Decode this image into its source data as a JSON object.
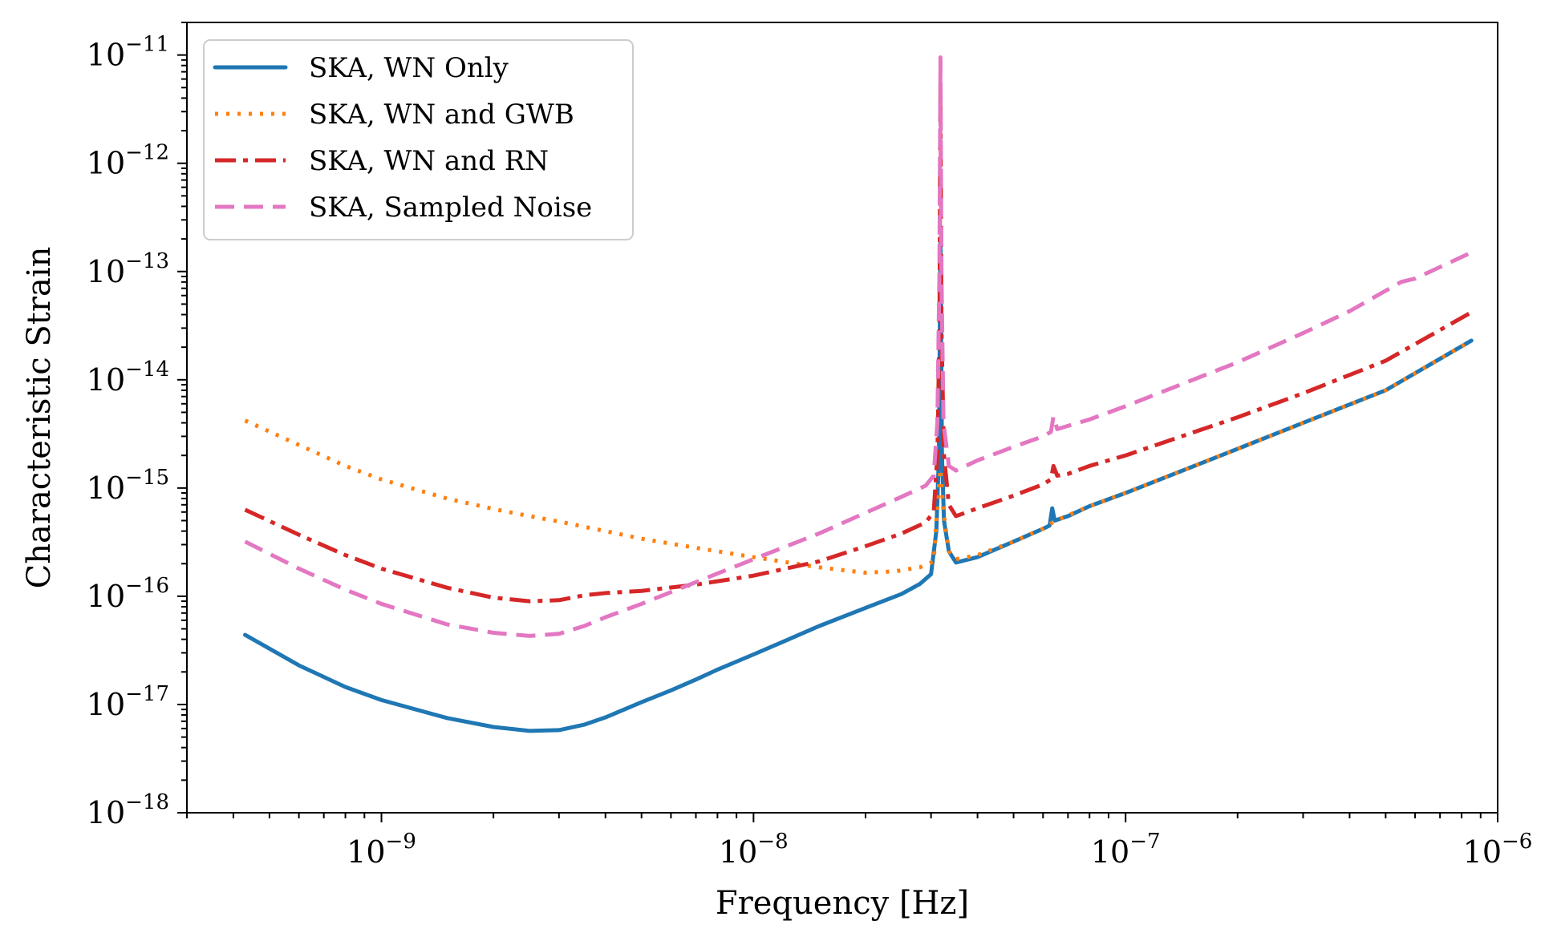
{
  "chart_data": {
    "type": "line",
    "title": "",
    "xlabel": "Frequency [Hz]",
    "ylabel": "Characteristic Strain",
    "xscale": "log",
    "yscale": "log",
    "xlim": [
      3e-10,
      1e-06
    ],
    "ylim": [
      1e-18,
      2e-11
    ],
    "grid": false,
    "legend_position": "top-left",
    "x_ticks": [
      {
        "value": 1e-09,
        "base": "10",
        "exp": "−9"
      },
      {
        "value": 1e-08,
        "base": "10",
        "exp": "−8"
      },
      {
        "value": 1e-07,
        "base": "10",
        "exp": "−7"
      },
      {
        "value": 1e-06,
        "base": "10",
        "exp": "−6"
      }
    ],
    "y_ticks": [
      {
        "value": 1e-18,
        "base": "10",
        "exp": "−18"
      },
      {
        "value": 1e-17,
        "base": "10",
        "exp": "−17"
      },
      {
        "value": 1e-16,
        "base": "10",
        "exp": "−16"
      },
      {
        "value": 1e-15,
        "base": "10",
        "exp": "−15"
      },
      {
        "value": 1e-14,
        "base": "10",
        "exp": "−14"
      },
      {
        "value": 1e-13,
        "base": "10",
        "exp": "−13"
      },
      {
        "value": 1e-12,
        "base": "10",
        "exp": "−12"
      },
      {
        "value": 1e-11,
        "base": "10",
        "exp": "−11"
      }
    ],
    "series": [
      {
        "name": "SKA, WN Only",
        "color": "#1f77b4",
        "style": "solid",
        "points": [
          [
            4.3e-10,
            4.4e-17
          ],
          [
            6e-10,
            2.3e-17
          ],
          [
            8e-10,
            1.45e-17
          ],
          [
            1e-09,
            1.1e-17
          ],
          [
            1.5e-09,
            7.5e-18
          ],
          [
            2e-09,
            6.2e-18
          ],
          [
            2.5e-09,
            5.7e-18
          ],
          [
            3e-09,
            5.8e-18
          ],
          [
            3.5e-09,
            6.5e-18
          ],
          [
            4e-09,
            7.6e-18
          ],
          [
            5e-09,
            1.05e-17
          ],
          [
            6e-09,
            1.35e-17
          ],
          [
            7e-09,
            1.7e-17
          ],
          [
            8e-09,
            2.1e-17
          ],
          [
            1e-08,
            2.9e-17
          ],
          [
            1.2e-08,
            3.8e-17
          ],
          [
            1.5e-08,
            5.3e-17
          ],
          [
            2e-08,
            7.8e-17
          ],
          [
            2.5e-08,
            1.05e-16
          ],
          [
            2.8e-08,
            1.3e-16
          ],
          [
            3e-08,
            1.6e-16
          ],
          [
            3.1e-08,
            4e-16
          ],
          [
            3.15e-08,
            2e-15
          ],
          [
            3.18e-08,
            2e-13
          ],
          [
            3.21e-08,
            2e-15
          ],
          [
            3.25e-08,
            5e-16
          ],
          [
            3.35e-08,
            2.6e-16
          ],
          [
            3.5e-08,
            2.05e-16
          ],
          [
            4e-08,
            2.3e-16
          ],
          [
            5e-08,
            3.2e-16
          ],
          [
            6e-08,
            4.2e-16
          ],
          [
            6.25e-08,
            4.5e-16
          ],
          [
            6.35e-08,
            6.5e-16
          ],
          [
            6.45e-08,
            5e-16
          ],
          [
            7e-08,
            5.5e-16
          ],
          [
            8e-08,
            6.8e-16
          ],
          [
            1e-07,
            9e-16
          ],
          [
            2e-07,
            2.3e-15
          ],
          [
            3e-07,
            4e-15
          ],
          [
            5e-07,
            8e-15
          ],
          [
            8.5e-07,
            2.3e-14
          ]
        ]
      },
      {
        "name": "SKA, WN and GWB",
        "color": "#ff7f0e",
        "style": "dotted",
        "points": [
          [
            4.3e-10,
            4.2e-15
          ],
          [
            6e-10,
            2.5e-15
          ],
          [
            8e-10,
            1.6e-15
          ],
          [
            1e-09,
            1.2e-15
          ],
          [
            1.5e-09,
            8e-16
          ],
          [
            2e-09,
            6.4e-16
          ],
          [
            2.5e-09,
            5.5e-16
          ],
          [
            3e-09,
            4.9e-16
          ],
          [
            4e-09,
            4e-16
          ],
          [
            5e-09,
            3.4e-16
          ],
          [
            7e-09,
            2.8e-16
          ],
          [
            1e-08,
            2.3e-16
          ],
          [
            1.3e-08,
            2e-16
          ],
          [
            1.5e-08,
            1.85e-16
          ],
          [
            2e-08,
            1.65e-16
          ],
          [
            2.4e-08,
            1.7e-16
          ],
          [
            2.8e-08,
            1.85e-16
          ],
          [
            3.05e-08,
            2.1e-16
          ],
          [
            3.12e-08,
            7e-16
          ],
          [
            3.18e-08,
            1.5e-15
          ],
          [
            3.24e-08,
            6e-16
          ],
          [
            3.35e-08,
            2.6e-16
          ],
          [
            3.5e-08,
            2.2e-16
          ],
          [
            4e-08,
            2.4e-16
          ],
          [
            5e-08,
            3.2e-16
          ],
          [
            6e-08,
            4.2e-16
          ],
          [
            6.3e-08,
            4.7e-16
          ],
          [
            6.5e-08,
            5e-16
          ],
          [
            8e-08,
            6.8e-16
          ],
          [
            1e-07,
            9e-16
          ],
          [
            2e-07,
            2.3e-15
          ],
          [
            3e-07,
            4e-15
          ],
          [
            5e-07,
            8e-15
          ],
          [
            8.5e-07,
            2.3e-14
          ]
        ]
      },
      {
        "name": "SKA, WN and RN",
        "color": "#d62728",
        "style": "dashdot",
        "points": [
          [
            4.3e-10,
            6.3e-16
          ],
          [
            6e-10,
            3.7e-16
          ],
          [
            8e-10,
            2.4e-16
          ],
          [
            1e-09,
            1.8e-16
          ],
          [
            1.5e-09,
            1.2e-16
          ],
          [
            2e-09,
            9.7e-17
          ],
          [
            2.5e-09,
            9e-17
          ],
          [
            3e-09,
            9.2e-17
          ],
          [
            3.5e-09,
            1.02e-16
          ],
          [
            4e-09,
            1.07e-16
          ],
          [
            5e-09,
            1.12e-16
          ],
          [
            7e-09,
            1.28e-16
          ],
          [
            1e-08,
            1.55e-16
          ],
          [
            1.5e-08,
            2.1e-16
          ],
          [
            2e-08,
            2.9e-16
          ],
          [
            2.5e-08,
            3.8e-16
          ],
          [
            2.9e-08,
            4.8e-16
          ],
          [
            3.05e-08,
            6e-16
          ],
          [
            3.12e-08,
            2e-15
          ],
          [
            3.16e-08,
            3e-14
          ],
          [
            3.18e-08,
            5e-12
          ],
          [
            3.2e-08,
            3e-14
          ],
          [
            3.25e-08,
            2e-15
          ],
          [
            3.35e-08,
            7e-16
          ],
          [
            3.5e-08,
            5.5e-16
          ],
          [
            4e-08,
            6.5e-16
          ],
          [
            5e-08,
            8.5e-16
          ],
          [
            6e-08,
            1.08e-15
          ],
          [
            6.3e-08,
            1.2e-15
          ],
          [
            6.4e-08,
            1.6e-15
          ],
          [
            6.55e-08,
            1.3e-15
          ],
          [
            7e-08,
            1.35e-15
          ],
          [
            8e-08,
            1.6e-15
          ],
          [
            1e-07,
            2e-15
          ],
          [
            2e-07,
            4.5e-15
          ],
          [
            3e-07,
            7.5e-15
          ],
          [
            5e-07,
            1.5e-14
          ],
          [
            8.5e-07,
            4.2e-14
          ]
        ]
      },
      {
        "name": "SKA, Sampled Noise",
        "color": "#e377c2",
        "style": "dashed",
        "points": [
          [
            4.3e-10,
            3.2e-16
          ],
          [
            6e-10,
            1.8e-16
          ],
          [
            8e-10,
            1.15e-16
          ],
          [
            1e-09,
            8.5e-17
          ],
          [
            1.5e-09,
            5.5e-17
          ],
          [
            2e-09,
            4.6e-17
          ],
          [
            2.5e-09,
            4.3e-17
          ],
          [
            3e-09,
            4.5e-17
          ],
          [
            3.5e-09,
            5.3e-17
          ],
          [
            4e-09,
            6.4e-17
          ],
          [
            5e-09,
            8.5e-17
          ],
          [
            7e-09,
            1.35e-16
          ],
          [
            1e-08,
            2.2e-16
          ],
          [
            1.5e-08,
            3.8e-16
          ],
          [
            2e-08,
            5.9e-16
          ],
          [
            2.5e-08,
            8.3e-16
          ],
          [
            2.9e-08,
            1.05e-15
          ],
          [
            3.05e-08,
            1.3e-15
          ],
          [
            3.12e-08,
            4e-15
          ],
          [
            3.16e-08,
            1e-13
          ],
          [
            3.18e-08,
            9.5e-12
          ],
          [
            3.2e-08,
            1e-13
          ],
          [
            3.24e-08,
            4e-15
          ],
          [
            3.35e-08,
            1.6e-15
          ],
          [
            3.5e-08,
            1.45e-15
          ],
          [
            4e-08,
            1.8e-15
          ],
          [
            5e-08,
            2.4e-15
          ],
          [
            6e-08,
            3e-15
          ],
          [
            6.3e-08,
            3.3e-15
          ],
          [
            6.4e-08,
            4.6e-15
          ],
          [
            6.55e-08,
            3.5e-15
          ],
          [
            8e-08,
            4.3e-15
          ],
          [
            1e-07,
            5.7e-15
          ],
          [
            2e-07,
            1.45e-14
          ],
          [
            3e-07,
            2.7e-14
          ],
          [
            4e-07,
            4.3e-14
          ],
          [
            5.5e-07,
            8e-14
          ],
          [
            6e-07,
            8.6e-14
          ],
          [
            8.5e-07,
            1.5e-13
          ]
        ]
      }
    ]
  }
}
